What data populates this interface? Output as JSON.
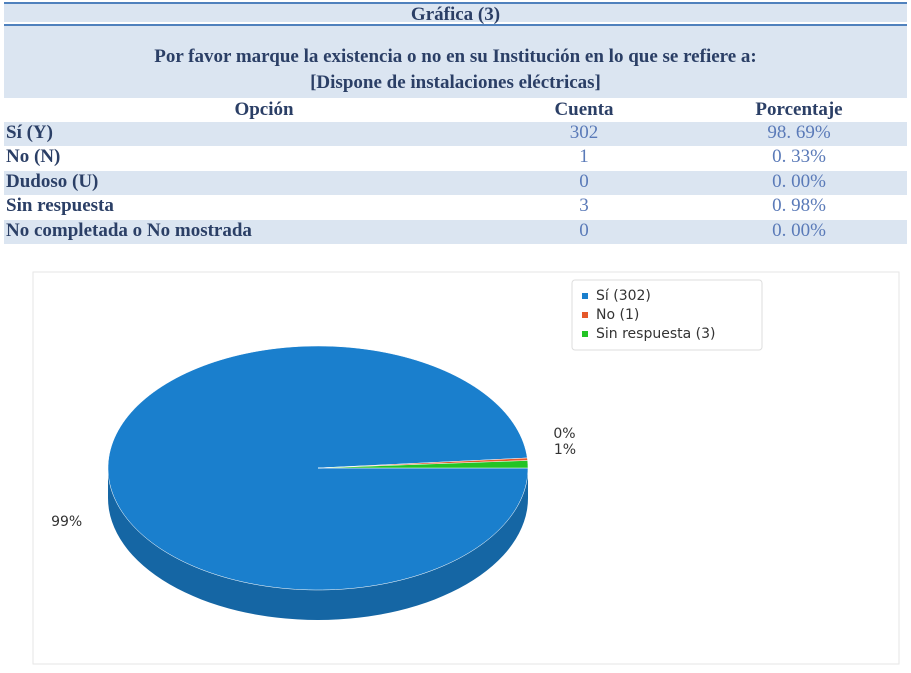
{
  "table": {
    "title": "Gráfica (3)",
    "question": "Por favor marque la existencia o no en su Institución en lo que se refiere a:",
    "subquestion": "[Dispone de instalaciones eléctricas]",
    "header": [
      "Opción",
      "Cuenta",
      "Porcentaje"
    ],
    "rows": [
      [
        "Sí (Y)",
        302,
        "98. 69%"
      ],
      [
        "No (N)",
        1,
        "0. 33%"
      ],
      [
        "Dudoso (U)",
        0,
        "0. 00%"
      ],
      [
        "Sin respuesta",
        3,
        "0. 98%"
      ],
      [
        "No completada o No mostrada",
        0,
        "0. 00%"
      ]
    ]
  },
  "chart_data": {
    "type": "pie",
    "categories": [
      "Sí (302)",
      "No (1)",
      "Sin respuesta (3)"
    ],
    "values": [
      98.69,
      0.33,
      0.98
    ],
    "value_labels": [
      "99%",
      "0%",
      "1%"
    ],
    "colors": [
      "#1a7fcd",
      "#e5582b",
      "#23c424"
    ]
  }
}
